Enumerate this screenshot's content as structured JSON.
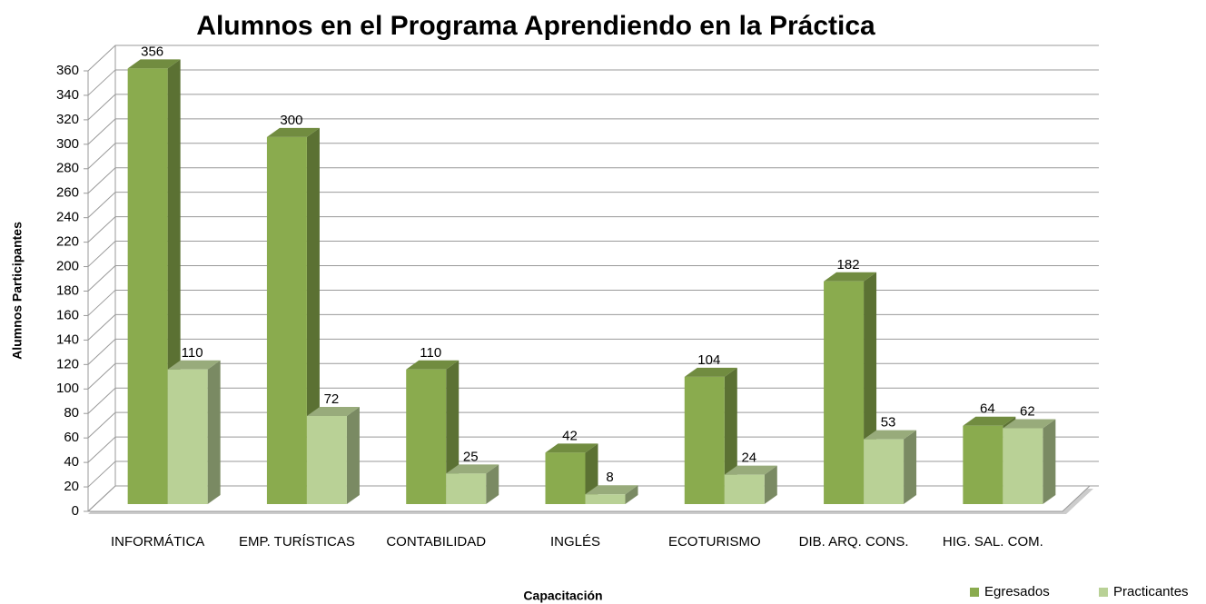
{
  "chart_data": {
    "type": "bar3d",
    "title": "Alumnos en el Programa Aprendiendo en la Práctica",
    "x_label": "Capacitación",
    "y_label": "Alumnos Participantes",
    "categories": [
      "INFORMÁTICA",
      "EMP. TURÍSTICAS",
      "CONTABILIDAD",
      "INGLÉS",
      "ECOTURISMO",
      "DIB. ARQ. CONS.",
      "HIG. SAL. COM."
    ],
    "series": [
      {
        "name": "Egresados",
        "color": "#8aab4e",
        "values": [
          356,
          300,
          110,
          42,
          104,
          182,
          64
        ]
      },
      {
        "name": "Practicantes",
        "color": "#b9d196",
        "values": [
          110,
          72,
          25,
          8,
          24,
          53,
          62
        ]
      }
    ],
    "ylim": [
      0,
      360
    ],
    "yticks": [
      0,
      20,
      40,
      60,
      80,
      100,
      120,
      140,
      160,
      180,
      200,
      220,
      240,
      260,
      280,
      300,
      320,
      340,
      360
    ],
    "grid": true,
    "legend": "bottom-right"
  }
}
